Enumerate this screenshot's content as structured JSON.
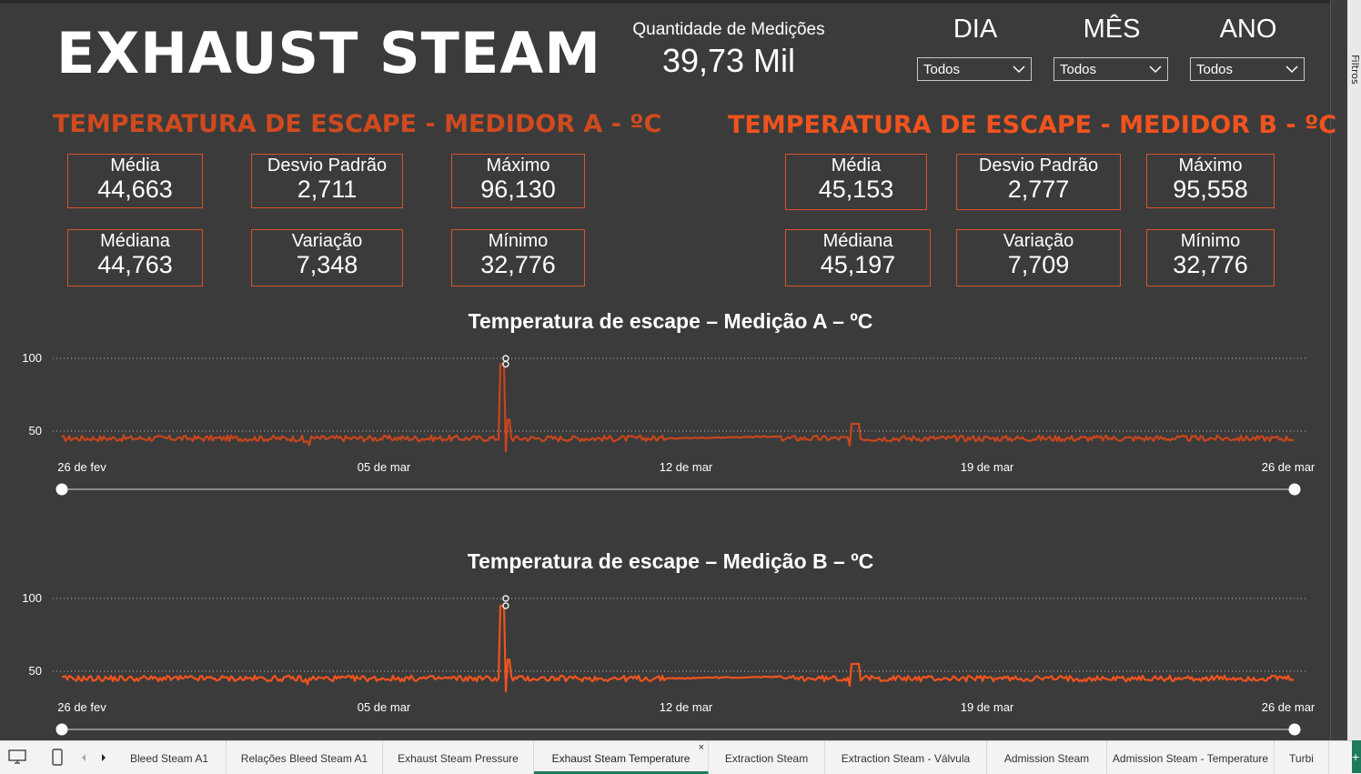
{
  "header": {
    "title": "EXHAUST STEAM",
    "count_label": "Quantidade de Medições",
    "count_value": "39,73 Mil"
  },
  "slicers": [
    {
      "title": "DIA",
      "value": "Todos"
    },
    {
      "title": "MÊS",
      "value": "Todos"
    },
    {
      "title": "ANO",
      "value": "Todos"
    }
  ],
  "section_a": {
    "title": "TEMPERATURA DE ESCAPE - MEDIDOR A - ºC",
    "cards": [
      {
        "label": "Média",
        "value": "44,663"
      },
      {
        "label": "Desvio Padrão",
        "value": "2,711"
      },
      {
        "label": "Máximo",
        "value": "96,130"
      },
      {
        "label": "Médiana",
        "value": "44,763"
      },
      {
        "label": "Variação",
        "value": "7,348"
      },
      {
        "label": "Mínimo",
        "value": "32,776"
      }
    ]
  },
  "section_b": {
    "title": "TEMPERATURA DE ESCAPE - MEDIDOR B - ºC",
    "cards": [
      {
        "label": "Média",
        "value": "45,153"
      },
      {
        "label": "Desvio Padrão",
        "value": "2,777"
      },
      {
        "label": "Máximo",
        "value": "95,558"
      },
      {
        "label": "Médiana",
        "value": "45,197"
      },
      {
        "label": "Variação",
        "value": "7,709"
      },
      {
        "label": "Mínimo",
        "value": "32,776"
      }
    ]
  },
  "colors": {
    "background": "#3b3b3b",
    "accent_a": "#d04a1f",
    "accent_b": "#f0531e",
    "line_a": "#c8451c",
    "line_b": "#f0531e",
    "active_tab": "#1e7c5a"
  },
  "chart_data": [
    {
      "type": "line",
      "title": "Temperatura de escape – Medição A – ºC",
      "x_ticks": [
        "26 de fev",
        "05 de mar",
        "12 de mar",
        "19 de mar",
        "26 de mar"
      ],
      "y_ticks": [
        100,
        50
      ],
      "x_range": [
        "2023-02-26",
        "2023-03-26"
      ],
      "baseline": 45,
      "events": [
        {
          "date": "2023-03-08",
          "value": 96
        },
        {
          "date": "2023-03-08",
          "value": 100
        },
        {
          "date": "2023-03-16",
          "value": 55
        }
      ],
      "grid": true
    },
    {
      "type": "line",
      "title": "Temperatura de escape – Medição B – ºC",
      "x_ticks": [
        "26 de fev",
        "05 de mar",
        "12 de mar",
        "19 de mar",
        "26 de mar"
      ],
      "y_ticks": [
        100,
        50
      ],
      "x_range": [
        "2023-02-26",
        "2023-03-26"
      ],
      "baseline": 45,
      "events": [
        {
          "date": "2023-03-08",
          "value": 95
        },
        {
          "date": "2023-03-08",
          "value": 100
        },
        {
          "date": "2023-03-16",
          "value": 55
        }
      ],
      "grid": true
    }
  ],
  "tabs": [
    {
      "label": "Bleed Steam A1",
      "active": false
    },
    {
      "label": "Relações Bleed Steam A1",
      "active": false
    },
    {
      "label": "Exhaust Steam Pressure",
      "active": false
    },
    {
      "label": "Exhaust Steam Temperature",
      "active": true
    },
    {
      "label": "Extraction Steam",
      "active": false
    },
    {
      "label": "Extraction Steam - Válvula",
      "active": false
    },
    {
      "label": "Admission Steam",
      "active": false
    },
    {
      "label": "Admission Steam - Temperature",
      "active": false
    },
    {
      "label": "Turbi",
      "active": false
    }
  ],
  "tab_close": "×",
  "tab_add": "+",
  "side_panel_label": "Filtros"
}
